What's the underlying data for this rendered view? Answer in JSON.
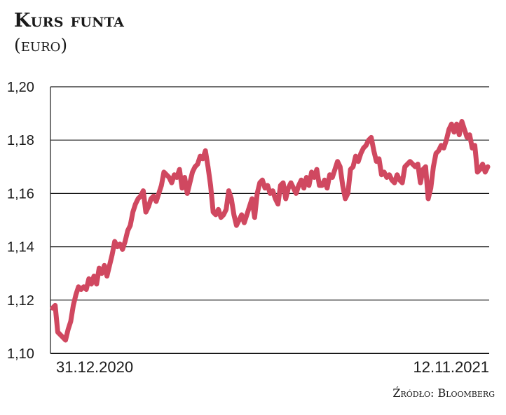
{
  "title": "Kurs funta",
  "subtitle": "(euro)",
  "source": "Źródło: Bloomberg",
  "colors": {
    "line": "#d04860",
    "grid": "#1a1a1a"
  },
  "chart_data": {
    "type": "line",
    "title": "Kurs funta",
    "subtitle": "(euro)",
    "xlabel": "",
    "ylabel": "",
    "ylim": [
      1.1,
      1.2
    ],
    "yticks": [
      "1,20",
      "1,18",
      "1,16",
      "1,14",
      "1,12",
      "1,10"
    ],
    "x_tick_labels": [
      "31.12.2020",
      "12.11.2021"
    ],
    "grid": true,
    "legend": "none",
    "series": [
      {
        "values": [
          1.117,
          1.118,
          1.108,
          1.107,
          1.106,
          1.105,
          1.109,
          1.112,
          1.118,
          1.122,
          1.125,
          1.124,
          1.125,
          1.124,
          1.128,
          1.126,
          1.129,
          1.126,
          1.132,
          1.13,
          1.133,
          1.129,
          1.133,
          1.137,
          1.142,
          1.14,
          1.141,
          1.139,
          1.142,
          1.146,
          1.148,
          1.153,
          1.156,
          1.158,
          1.159,
          1.161,
          1.153,
          1.155,
          1.158,
          1.159,
          1.157,
          1.16,
          1.163,
          1.168,
          1.167,
          1.166,
          1.164,
          1.167,
          1.166,
          1.169,
          1.162,
          1.166,
          1.16,
          1.164,
          1.168,
          1.17,
          1.171,
          1.174,
          1.173,
          1.176,
          1.17,
          1.163,
          1.153,
          1.152,
          1.154,
          1.151,
          1.152,
          1.154,
          1.161,
          1.158,
          1.152,
          1.148,
          1.15,
          1.152,
          1.149,
          1.152,
          1.155,
          1.158,
          1.151,
          1.16,
          1.164,
          1.165,
          1.162,
          1.163,
          1.16,
          1.161,
          1.158,
          1.156,
          1.163,
          1.164,
          1.158,
          1.162,
          1.164,
          1.162,
          1.16,
          1.163,
          1.165,
          1.162,
          1.166,
          1.163,
          1.168,
          1.166,
          1.169,
          1.163,
          1.163,
          1.165,
          1.162,
          1.167,
          1.166,
          1.169,
          1.172,
          1.17,
          1.163,
          1.158,
          1.16,
          1.169,
          1.17,
          1.174,
          1.172,
          1.175,
          1.177,
          1.178,
          1.18,
          1.181,
          1.176,
          1.172,
          1.173,
          1.167,
          1.168,
          1.166,
          1.167,
          1.165,
          1.164,
          1.167,
          1.165,
          1.164,
          1.17,
          1.171,
          1.172,
          1.171,
          1.17,
          1.171,
          1.164,
          1.169,
          1.17,
          1.158,
          1.162,
          1.17,
          1.175,
          1.176,
          1.178,
          1.177,
          1.18,
          1.184,
          1.186,
          1.183,
          1.186,
          1.182,
          1.187,
          1.184,
          1.181,
          1.182,
          1.177,
          1.178,
          1.168,
          1.169,
          1.171,
          1.168,
          1.17
        ]
      }
    ]
  }
}
